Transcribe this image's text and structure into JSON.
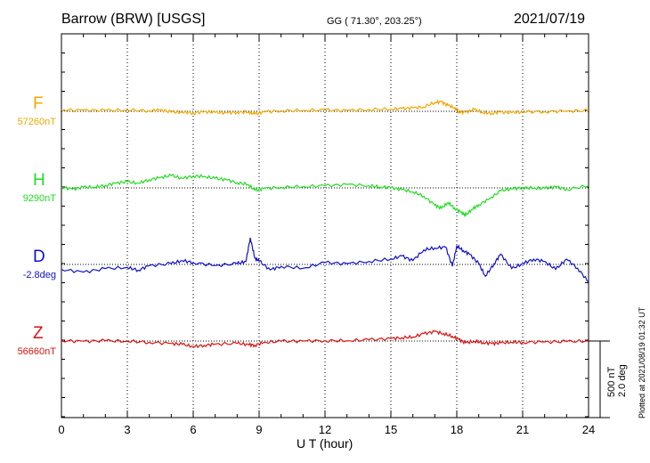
{
  "header": {
    "station": "Barrow (BRW)  [USGS]",
    "coords": "GG ( 71.30°, 203.25°)",
    "date": "2021/07/19"
  },
  "plotted_note": "Plotted at 2021/08/19 01:32 UT",
  "scale_bar": {
    "nt": "500 nT",
    "deg": "2.0 deg"
  },
  "colors": {
    "F": "#f0a800",
    "H": "#22dd22",
    "D": "#1010cc",
    "Z": "#dd1111"
  },
  "chart_data": {
    "type": "line",
    "xlabel": "U T (hour)",
    "xlim": [
      0,
      24
    ],
    "x_ticks": [
      "0",
      "3",
      "6",
      "9",
      "12",
      "15",
      "18",
      "21",
      "24"
    ],
    "y_scale_per_division": "500 nT / 2.0 deg",
    "series": [
      {
        "name": "F",
        "baseline_label": "57260nT",
        "unit": "nT",
        "points": [
          [
            0,
            8
          ],
          [
            1,
            8
          ],
          [
            2,
            6
          ],
          [
            3,
            8
          ],
          [
            4,
            4
          ],
          [
            4.5,
            10
          ],
          [
            5,
            -6
          ],
          [
            5.5,
            -6
          ],
          [
            6,
            -12
          ],
          [
            6.5,
            -2
          ],
          [
            7,
            -8
          ],
          [
            7.5,
            -10
          ],
          [
            8,
            -6
          ],
          [
            8.5,
            -6
          ],
          [
            8.8,
            -18
          ],
          [
            9.2,
            -4
          ],
          [
            10,
            4
          ],
          [
            11,
            6
          ],
          [
            12,
            8
          ],
          [
            13,
            6
          ],
          [
            14,
            12
          ],
          [
            15,
            14
          ],
          [
            15.5,
            18
          ],
          [
            16,
            22
          ],
          [
            16.5,
            28
          ],
          [
            17,
            58
          ],
          [
            17.3,
            62
          ],
          [
            17.6,
            38
          ],
          [
            17.9,
            24
          ],
          [
            18.1,
            -4
          ],
          [
            18.4,
            -6
          ],
          [
            18.8,
            12
          ],
          [
            19.2,
            -10
          ],
          [
            19.6,
            -12
          ],
          [
            20,
            -4
          ],
          [
            20.5,
            -10
          ],
          [
            21,
            -4
          ],
          [
            22,
            -2
          ],
          [
            23,
            2
          ],
          [
            24,
            4
          ]
        ]
      },
      {
        "name": "H",
        "baseline_label": "9290nT",
        "unit": "nT",
        "points": [
          [
            0,
            4
          ],
          [
            0.5,
            -8
          ],
          [
            1,
            4
          ],
          [
            1.5,
            4
          ],
          [
            2,
            16
          ],
          [
            2.5,
            32
          ],
          [
            3,
            40
          ],
          [
            3.5,
            30
          ],
          [
            4,
            54
          ],
          [
            4.5,
            68
          ],
          [
            5,
            80
          ],
          [
            5.5,
            62
          ],
          [
            6,
            78
          ],
          [
            6.5,
            74
          ],
          [
            7,
            62
          ],
          [
            7.5,
            54
          ],
          [
            8,
            34
          ],
          [
            8.5,
            22
          ],
          [
            8.8,
            -16
          ],
          [
            9.2,
            -4
          ],
          [
            10,
            4
          ],
          [
            11,
            8
          ],
          [
            12,
            14
          ],
          [
            13,
            22
          ],
          [
            14,
            14
          ],
          [
            14.5,
            6
          ],
          [
            15,
            2
          ],
          [
            15.5,
            -12
          ],
          [
            16,
            -26
          ],
          [
            16.5,
            -54
          ],
          [
            17,
            -112
          ],
          [
            17.3,
            -134
          ],
          [
            17.6,
            -96
          ],
          [
            17.9,
            -132
          ],
          [
            18.2,
            -160
          ],
          [
            18.4,
            -180
          ],
          [
            18.7,
            -140
          ],
          [
            19,
            -110
          ],
          [
            19.5,
            -70
          ],
          [
            20,
            -20
          ],
          [
            20.5,
            -6
          ],
          [
            21,
            2
          ],
          [
            21.5,
            -2
          ],
          [
            22,
            -4
          ],
          [
            22.5,
            8
          ],
          [
            23,
            -10
          ],
          [
            24,
            14
          ]
        ]
      },
      {
        "name": "D",
        "baseline_label": "-2.8deg",
        "unit": "deg",
        "points": [
          [
            0,
            -0.13
          ],
          [
            1,
            -0.2
          ],
          [
            2,
            -0.11
          ],
          [
            3,
            -0.08
          ],
          [
            3.5,
            -0.15
          ],
          [
            4,
            -0.03
          ],
          [
            5,
            0.02
          ],
          [
            5.5,
            0.1
          ],
          [
            6,
            0.05
          ],
          [
            7,
            -0.03
          ],
          [
            8,
            0.02
          ],
          [
            8.4,
            0.08
          ],
          [
            8.6,
            0.7
          ],
          [
            8.8,
            0.17
          ],
          [
            9,
            0.09
          ],
          [
            9.5,
            -0.14
          ],
          [
            10,
            -0.05
          ],
          [
            11,
            -0.1
          ],
          [
            12,
            0.05
          ],
          [
            13,
            0.02
          ],
          [
            14,
            0.08
          ],
          [
            15,
            0.14
          ],
          [
            15.5,
            0.22
          ],
          [
            16,
            0.1
          ],
          [
            16.5,
            0.38
          ],
          [
            17,
            0.43
          ],
          [
            17.5,
            0.45
          ],
          [
            17.8,
            -0.05
          ],
          [
            18,
            0.48
          ],
          [
            18.3,
            0.36
          ],
          [
            18.6,
            0.26
          ],
          [
            19,
            0.02
          ],
          [
            19.3,
            -0.31
          ],
          [
            19.7,
            0.02
          ],
          [
            20,
            0.27
          ],
          [
            20.5,
            -0.11
          ],
          [
            21,
            0.02
          ],
          [
            21.5,
            0.14
          ],
          [
            22,
            0.08
          ],
          [
            22.5,
            -0.13
          ],
          [
            23,
            0.14
          ],
          [
            23.5,
            -0.1
          ],
          [
            24,
            -0.46
          ]
        ]
      },
      {
        "name": "Z",
        "baseline_label": "56660nT",
        "unit": "nT",
        "points": [
          [
            0,
            2
          ],
          [
            1,
            -2
          ],
          [
            2,
            2
          ],
          [
            3,
            -2
          ],
          [
            4,
            -8
          ],
          [
            5,
            -16
          ],
          [
            5.5,
            -22
          ],
          [
            6,
            -36
          ],
          [
            6.5,
            -28
          ],
          [
            7,
            -20
          ],
          [
            8,
            -16
          ],
          [
            8.5,
            -22
          ],
          [
            8.8,
            -28
          ],
          [
            9.2,
            -10
          ],
          [
            10,
            -2
          ],
          [
            11,
            0
          ],
          [
            12,
            2
          ],
          [
            13,
            2
          ],
          [
            14,
            8
          ],
          [
            15,
            16
          ],
          [
            15.5,
            22
          ],
          [
            16,
            26
          ],
          [
            16.5,
            48
          ],
          [
            17,
            62
          ],
          [
            17.4,
            48
          ],
          [
            17.8,
            30
          ],
          [
            18.1,
            10
          ],
          [
            18.4,
            -12
          ],
          [
            18.8,
            -2
          ],
          [
            19.2,
            -10
          ],
          [
            19.6,
            -16
          ],
          [
            20,
            -12
          ],
          [
            20.5,
            -8
          ],
          [
            21,
            -8
          ],
          [
            22,
            -6
          ],
          [
            23,
            -4
          ],
          [
            24,
            0
          ]
        ]
      }
    ]
  }
}
